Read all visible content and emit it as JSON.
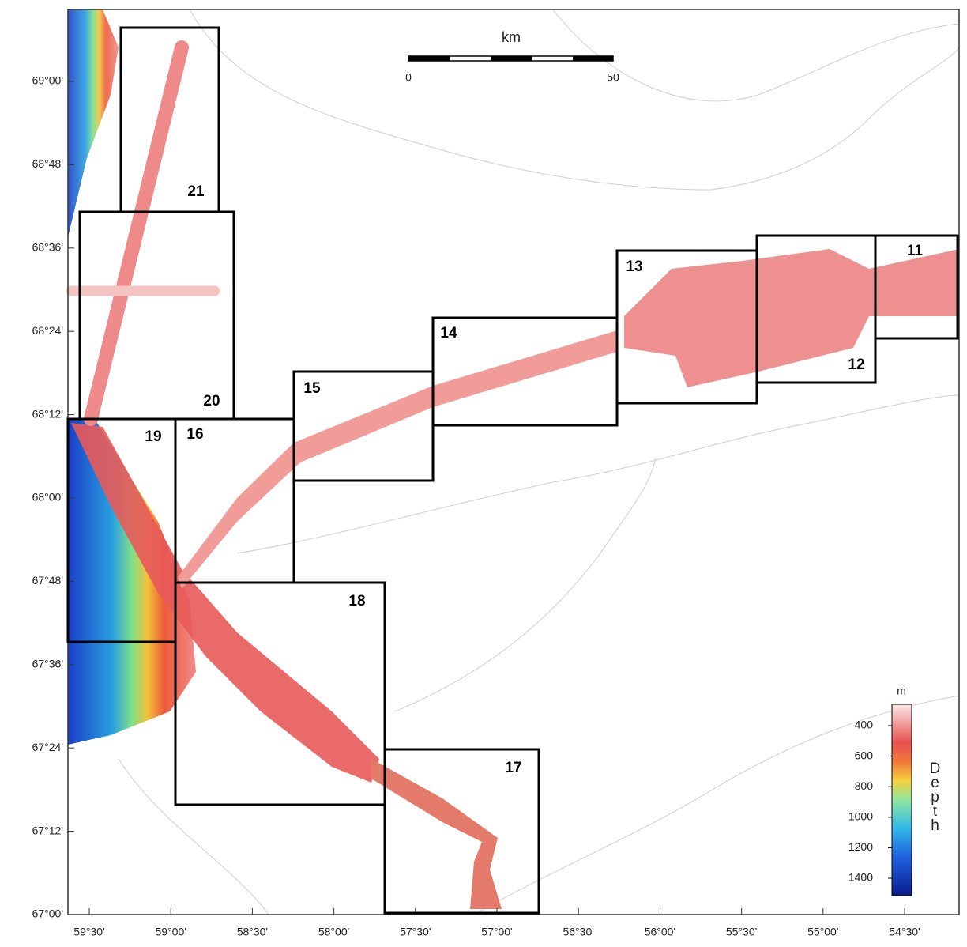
{
  "map": {
    "lat_labels": [
      "69°00'",
      "68°48'",
      "68°36'",
      "68°24'",
      "68°12'",
      "68°00'",
      "67°48'",
      "67°36'",
      "67°24'",
      "67°12'",
      "67°00'"
    ],
    "lon_labels": [
      "59°30'",
      "59°00'",
      "58°30'",
      "58°00'",
      "57°30'",
      "57°00'",
      "56°30'",
      "56°00'",
      "55°30'",
      "55°00'",
      "54°30'"
    ],
    "boxes": [
      "21",
      "20",
      "19",
      "16",
      "15",
      "14",
      "13",
      "12",
      "11",
      "18",
      "17"
    ],
    "scale_bar": {
      "unit": "km",
      "start": 0,
      "end": 50
    },
    "colorbar": {
      "unit": "m",
      "title": "Depth",
      "ticks": [
        400,
        600,
        800,
        1000,
        1200,
        1400
      ]
    }
  }
}
